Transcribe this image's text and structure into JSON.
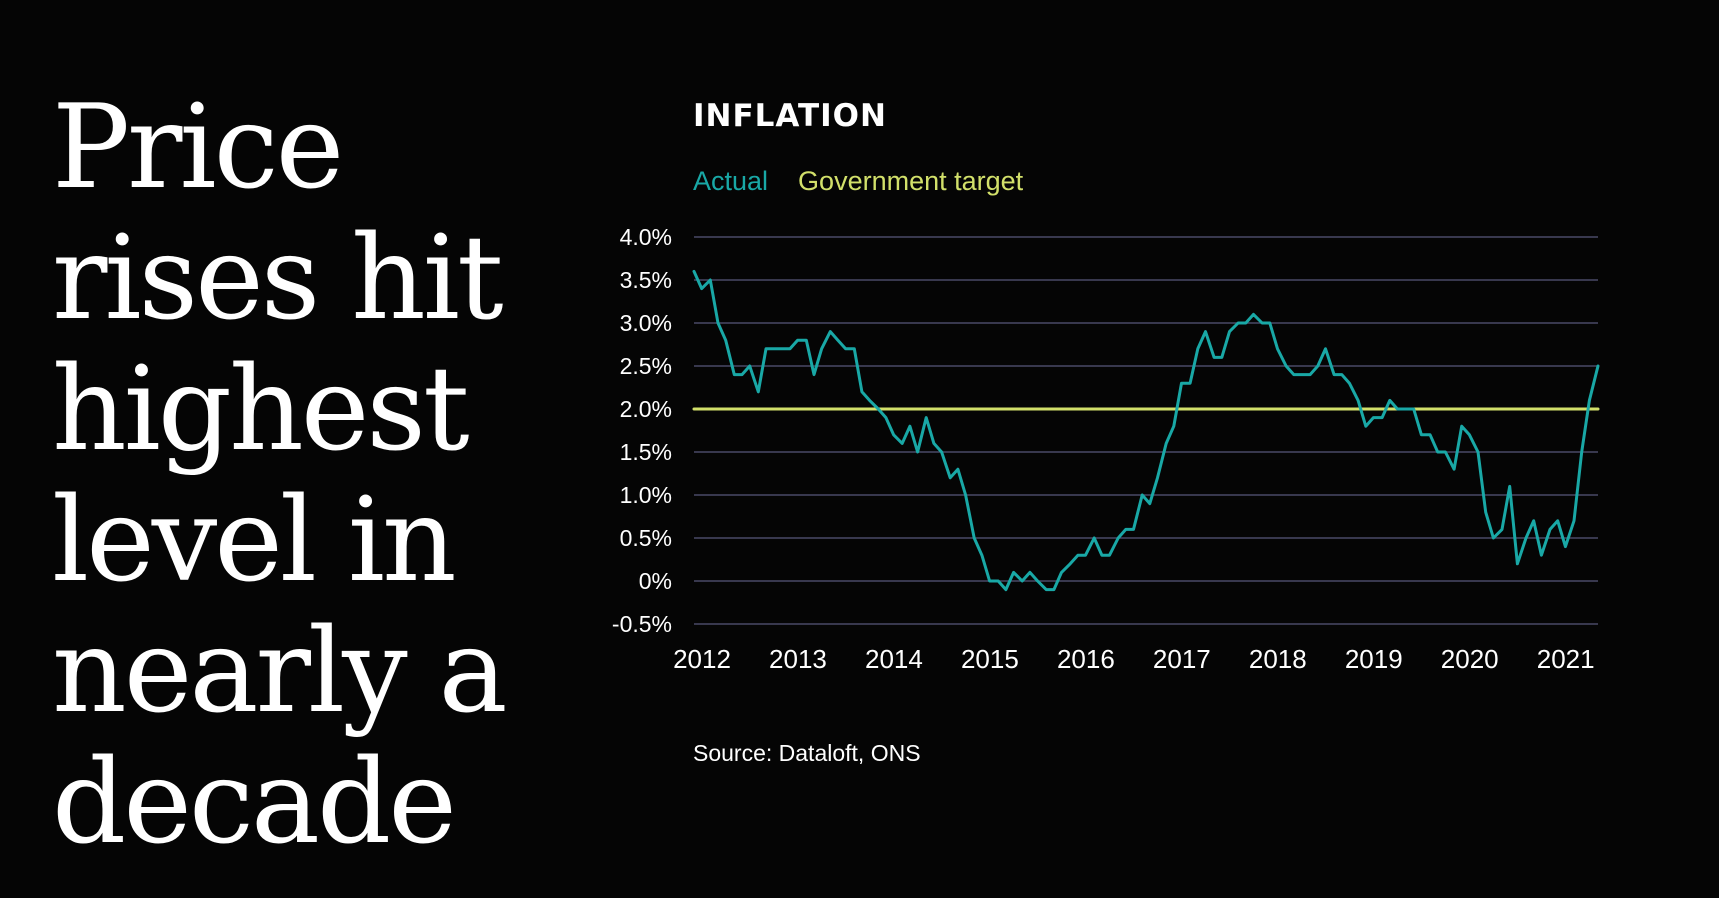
{
  "headline": {
    "lines": [
      "Price",
      "rises hit",
      "highest",
      "level in",
      "nearly a",
      "decade"
    ]
  },
  "source_text": "Source: Dataloft, ONS",
  "colors": {
    "background": "#050505",
    "actual": "#19a8a6",
    "target": "#d2e06a",
    "grid": "#4a4a66",
    "text": "#ffffff"
  },
  "chart_data": {
    "type": "line",
    "title": "INFLATION",
    "xlabel": "",
    "ylabel": "",
    "legend": [
      {
        "name": "Actual",
        "color": "#19a8a6"
      },
      {
        "name": "Government target",
        "color": "#d2e06a"
      }
    ],
    "y_ticks": [
      {
        "value": 4.0,
        "label": "4.0%"
      },
      {
        "value": 3.5,
        "label": "3.5%"
      },
      {
        "value": 3.0,
        "label": "3.0%"
      },
      {
        "value": 2.5,
        "label": "2.5%"
      },
      {
        "value": 2.0,
        "label": "2.0%"
      },
      {
        "value": 1.5,
        "label": "1.5%"
      },
      {
        "value": 1.0,
        "label": "1.0%"
      },
      {
        "value": 0.5,
        "label": "0.5%"
      },
      {
        "value": 0.0,
        "label": "0%"
      },
      {
        "value": -0.5,
        "label": "-0.5%"
      }
    ],
    "x_ticks": [
      {
        "value": 2012,
        "label": "2012"
      },
      {
        "value": 2013,
        "label": "2013"
      },
      {
        "value": 2014,
        "label": "2014"
      },
      {
        "value": 2015,
        "label": "2015"
      },
      {
        "value": 2016,
        "label": "2016"
      },
      {
        "value": 2017,
        "label": "2017"
      },
      {
        "value": 2018,
        "label": "2018"
      },
      {
        "value": 2019,
        "label": "2019"
      },
      {
        "value": 2020,
        "label": "2020"
      },
      {
        "value": 2021,
        "label": "2021"
      }
    ],
    "xlim": [
      2012,
      2021.42
    ],
    "ylim": [
      -0.5,
      4.0
    ],
    "series": [
      {
        "name": "Actual",
        "x": [
          2012.0,
          2012.08,
          2012.17,
          2012.25,
          2012.33,
          2012.42,
          2012.5,
          2012.58,
          2012.67,
          2012.75,
          2012.83,
          2012.92,
          2013.0,
          2013.08,
          2013.17,
          2013.25,
          2013.33,
          2013.42,
          2013.5,
          2013.58,
          2013.67,
          2013.75,
          2013.83,
          2013.92,
          2014.0,
          2014.08,
          2014.17,
          2014.25,
          2014.33,
          2014.42,
          2014.5,
          2014.58,
          2014.67,
          2014.75,
          2014.83,
          2014.92,
          2015.0,
          2015.08,
          2015.17,
          2015.25,
          2015.33,
          2015.42,
          2015.5,
          2015.58,
          2015.67,
          2015.75,
          2015.83,
          2015.92,
          2016.0,
          2016.08,
          2016.17,
          2016.25,
          2016.33,
          2016.42,
          2016.5,
          2016.58,
          2016.67,
          2016.75,
          2016.83,
          2016.92,
          2017.0,
          2017.08,
          2017.17,
          2017.25,
          2017.33,
          2017.42,
          2017.5,
          2017.58,
          2017.67,
          2017.75,
          2017.83,
          2017.92,
          2018.0,
          2018.08,
          2018.17,
          2018.25,
          2018.33,
          2018.42,
          2018.5,
          2018.58,
          2018.67,
          2018.75,
          2018.83,
          2018.92,
          2019.0,
          2019.08,
          2019.17,
          2019.25,
          2019.33,
          2019.42,
          2019.5,
          2019.58,
          2019.67,
          2019.75,
          2019.83,
          2019.92,
          2020.0,
          2020.08,
          2020.17,
          2020.25,
          2020.33,
          2020.42,
          2020.5,
          2020.58,
          2020.67,
          2020.75,
          2020.83,
          2020.92,
          2021.0,
          2021.08,
          2021.17,
          2021.25,
          2021.33,
          2021.42
        ],
        "values": [
          3.6,
          3.4,
          3.5,
          3.0,
          2.8,
          2.4,
          2.4,
          2.5,
          2.2,
          2.7,
          2.7,
          2.7,
          2.7,
          2.8,
          2.8,
          2.4,
          2.7,
          2.9,
          2.8,
          2.7,
          2.7,
          2.2,
          2.1,
          2.0,
          1.9,
          1.7,
          1.6,
          1.8,
          1.5,
          1.9,
          1.6,
          1.5,
          1.2,
          1.3,
          1.0,
          0.5,
          0.3,
          0.0,
          0.0,
          -0.1,
          0.1,
          0.0,
          0.1,
          0.0,
          -0.1,
          -0.1,
          0.1,
          0.2,
          0.3,
          0.3,
          0.5,
          0.3,
          0.3,
          0.5,
          0.6,
          0.6,
          1.0,
          0.9,
          1.2,
          1.6,
          1.8,
          2.3,
          2.3,
          2.7,
          2.9,
          2.6,
          2.6,
          2.9,
          3.0,
          3.0,
          3.1,
          3.0,
          3.0,
          2.7,
          2.5,
          2.4,
          2.4,
          2.4,
          2.5,
          2.7,
          2.4,
          2.4,
          2.3,
          2.1,
          1.8,
          1.9,
          1.9,
          2.1,
          2.0,
          2.0,
          2.0,
          1.7,
          1.7,
          1.5,
          1.5,
          1.3,
          1.8,
          1.7,
          1.5,
          0.8,
          0.5,
          0.6,
          1.1,
          0.2,
          0.5,
          0.7,
          0.3,
          0.6,
          0.7,
          0.4,
          0.7,
          1.5,
          2.1,
          2.5
        ]
      },
      {
        "name": "Government target",
        "x": [
          2012.0,
          2021.42
        ],
        "values": [
          2.0,
          2.0
        ]
      }
    ],
    "grid": true,
    "legend_placement": "top-left"
  }
}
